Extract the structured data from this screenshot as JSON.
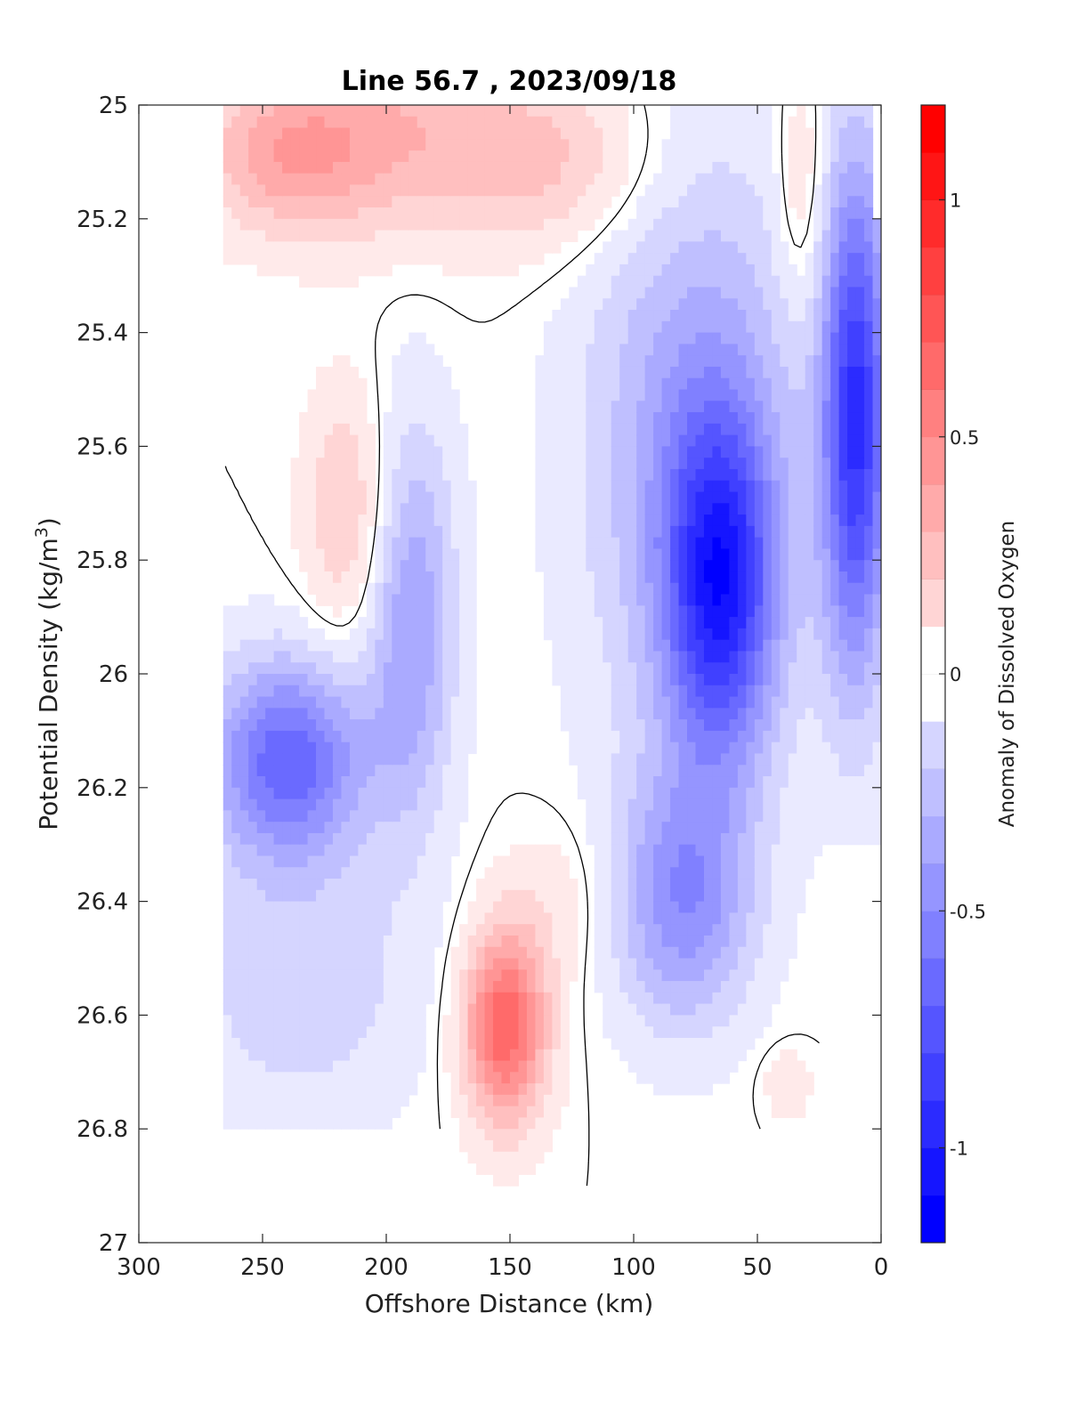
{
  "chart_data": {
    "type": "heatmap",
    "subtype": "filled-contour",
    "title": "Line 56.7 , 2023/09/18",
    "xlabel": "Offshore Distance (km)",
    "ylabel": "Potential Density (kg/m",
    "ylabel_sup": "3",
    "ylabel_end": ")",
    "xlim": [
      300,
      0
    ],
    "x_reversed": true,
    "ylim": [
      27,
      25
    ],
    "y_reversed": true,
    "xticks": [
      300,
      250,
      200,
      150,
      100,
      50,
      0
    ],
    "yticks": [
      25,
      25.2,
      25.4,
      25.6,
      25.8,
      26,
      26.2,
      26.4,
      26.6,
      26.8,
      27
    ],
    "colorbar": {
      "label": "Anomaly of Dissolved Oxygen",
      "range": [
        -1.2,
        1.2
      ],
      "levels": [
        -1.2,
        -1.1,
        -1.0,
        -0.9,
        -0.8,
        -0.7,
        -0.6,
        -0.5,
        -0.4,
        -0.3,
        -0.2,
        -0.1,
        0,
        0.1,
        0.2,
        0.3,
        0.4,
        0.5,
        0.6,
        0.7,
        0.8,
        0.9,
        1.0,
        1.1,
        1.2
      ],
      "ticks": [
        -1,
        -0.5,
        0,
        0.5,
        1
      ],
      "tick_labels": [
        "-1",
        "-0.5",
        "0",
        "0.5",
        "1"
      ],
      "colormap": "blue-white-red",
      "low_color": "#0000ff",
      "mid_color": "#ffffff",
      "high_color": "#ff0000"
    },
    "zero_contour_color": "#000000",
    "features": [
      {
        "label": "positive anomaly near surface",
        "x": [
          265,
          100
        ],
        "y": [
          25.0,
          25.45
        ],
        "peak": 0.3
      },
      {
        "label": "positive lens",
        "x_center": 215,
        "y_center": 25.75,
        "peak": 0.2
      },
      {
        "label": "negative core west",
        "x_center": 245,
        "y_center": 26.15,
        "peak": -0.7
      },
      {
        "label": "strong positive anomaly",
        "x_center": 150,
        "y_center": 26.65,
        "peak": 0.7
      },
      {
        "label": "strong negative core",
        "x_center": 65,
        "y_center": 25.85,
        "peak": -0.85
      },
      {
        "label": "negative coastal band",
        "x": [
          30,
          0
        ],
        "y": [
          25.2,
          26.3
        ],
        "peak": -1.0
      }
    ]
  }
}
